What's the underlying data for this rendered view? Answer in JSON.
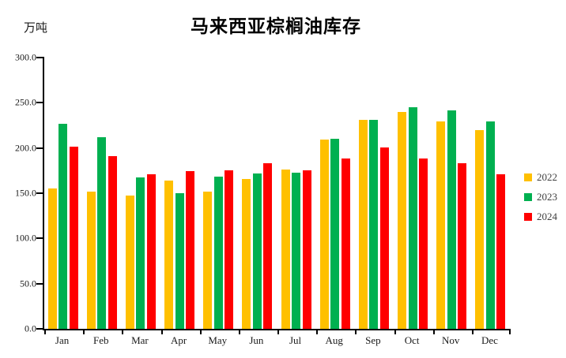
{
  "chart_data": {
    "type": "bar",
    "title": "马来西亚棕榈油库存",
    "ylabel": "万吨",
    "xlabel": "",
    "categories": [
      "Jan",
      "Feb",
      "Mar",
      "Apr",
      "May",
      "Jun",
      "Jul",
      "Aug",
      "Sep",
      "Oct",
      "Nov",
      "Dec"
    ],
    "series": [
      {
        "name": "2022",
        "color": "#FFC000",
        "values": [
          155.5,
          151.6,
          147.4,
          163.9,
          151.5,
          165.3,
          176.6,
          209.1,
          231.5,
          240.0,
          229.1,
          219.4
        ]
      },
      {
        "name": "2023",
        "color": "#00B050",
        "values": [
          226.5,
          211.5,
          167.2,
          149.8,
          168.5,
          171.9,
          173.0,
          210.5,
          231.2,
          244.9,
          242.0,
          229.0
        ]
      },
      {
        "name": "2024",
        "color": "#FF0000",
        "values": [
          201.6,
          191.4,
          171.3,
          174.4,
          175.1,
          183.2,
          174.9,
          188.0,
          200.9,
          188.4,
          183.0,
          170.7
        ]
      }
    ],
    "ylim": [
      0.0,
      300.0
    ],
    "ytick_step": 50.0,
    "ytick_decimals": 1,
    "grid": false,
    "legend_position": "right",
    "axis_color": "#000000",
    "background_color": "#ffffff"
  }
}
